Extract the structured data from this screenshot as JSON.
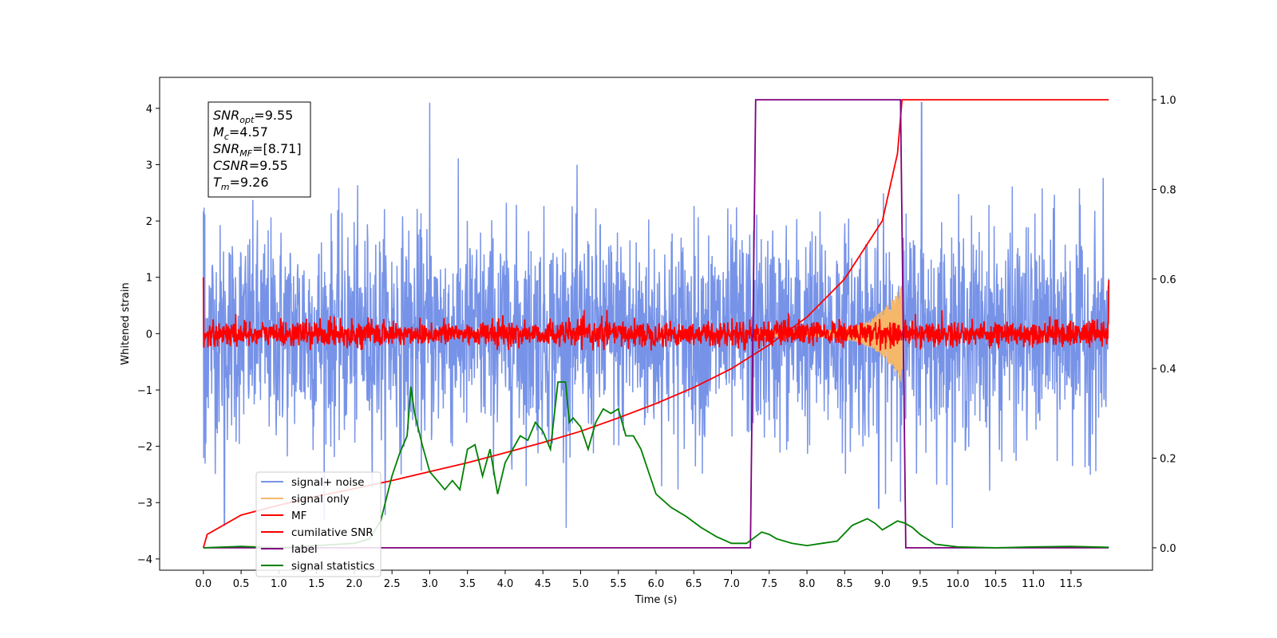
{
  "chart_data": {
    "type": "line",
    "xlabel": "Time (s)",
    "ylabel": "Whitened strain",
    "xlim": [
      -0.58,
      12.58
    ],
    "ylim": [
      -4.2,
      4.55
    ],
    "y2lim": [
      -0.05,
      1.05
    ],
    "x_ticks": [
      "0.0",
      "0.5",
      "1.0",
      "1.5",
      "2.0",
      "2.5",
      "3.0",
      "3.5",
      "4.0",
      "4.5",
      "5.0",
      "5.5",
      "6.0",
      "6.5",
      "7.0",
      "7.5",
      "8.0",
      "8.5",
      "9.0",
      "9.5",
      "10.0",
      "10.5",
      "11.0",
      "11.5"
    ],
    "y_ticks": [
      "4",
      "3",
      "2",
      "1",
      "0",
      "−1",
      "−2",
      "−3",
      "−4"
    ],
    "y2_ticks": [
      "1.0",
      "0.8",
      "0.6",
      "0.4",
      "0.2",
      "0.0"
    ],
    "grid": false,
    "legend_position": "lower-left",
    "annotation": {
      "lines": [
        {
          "base": "SNR",
          "sub": "opt",
          "value": "=9.55"
        },
        {
          "base": "M",
          "sub": "c",
          "value": "=4.57"
        },
        {
          "base": "SNR",
          "sub": "MF",
          "value": "=[8.71]"
        },
        {
          "base": "CSNR",
          "sub": "",
          "value": "=9.55"
        },
        {
          "base": "T",
          "sub": "m",
          "value": "=9.26"
        }
      ]
    },
    "series": [
      {
        "name": "signal+ noise",
        "color": "#7793e8",
        "axis": "left",
        "kind": "noise",
        "x_range": [
          0.0,
          12.0
        ],
        "mean": 0.0,
        "spread": 0.95,
        "peak_max": 4.1,
        "peak_min": -3.4
      },
      {
        "name": "signal only",
        "color": "#f5b86a",
        "axis": "left",
        "kind": "chirp",
        "x_range": [
          7.3,
          9.26
        ],
        "amplitude_max": 0.85
      },
      {
        "name": "MF",
        "color": "#ff0000",
        "axis": "left",
        "kind": "noise",
        "x_range": [
          0.0,
          12.0
        ],
        "mean": 0.0,
        "spread": 0.11,
        "edge_peak": 1.0
      },
      {
        "name": "cumilative SNR",
        "color": "#ff0000",
        "axis": "right",
        "x": [
          0.0,
          0.05,
          0.5,
          1.0,
          1.5,
          2.0,
          2.5,
          3.0,
          3.5,
          4.0,
          4.5,
          5.0,
          5.5,
          6.0,
          6.5,
          7.0,
          7.5,
          8.0,
          8.5,
          9.0,
          9.2,
          9.26,
          9.5,
          12.0
        ],
        "y": [
          0.0,
          0.03,
          0.073,
          0.095,
          0.115,
          0.132,
          0.15,
          0.17,
          0.19,
          0.212,
          0.235,
          0.26,
          0.29,
          0.322,
          0.358,
          0.4,
          0.453,
          0.515,
          0.6,
          0.73,
          0.88,
          1.0,
          1.0,
          1.0
        ]
      },
      {
        "name": "label",
        "color": "#800080",
        "axis": "right",
        "x": [
          0.0,
          7.25,
          7.32,
          9.24,
          9.31,
          12.0
        ],
        "y": [
          0.0,
          0.0,
          1.0,
          1.0,
          0.0,
          0.0
        ]
      },
      {
        "name": "signal statistics",
        "color": "#008000",
        "axis": "right",
        "x": [
          0.0,
          0.5,
          1.0,
          1.5,
          2.0,
          2.2,
          2.35,
          2.5,
          2.6,
          2.7,
          2.75,
          2.8,
          2.9,
          3.0,
          3.1,
          3.2,
          3.3,
          3.4,
          3.5,
          3.6,
          3.7,
          3.8,
          3.9,
          4.0,
          4.1,
          4.2,
          4.3,
          4.4,
          4.5,
          4.6,
          4.7,
          4.8,
          4.85,
          4.9,
          5.0,
          5.1,
          5.2,
          5.3,
          5.4,
          5.5,
          5.6,
          5.7,
          5.8,
          5.9,
          6.0,
          6.2,
          6.4,
          6.6,
          6.8,
          7.0,
          7.2,
          7.4,
          7.5,
          7.6,
          7.8,
          8.0,
          8.2,
          8.4,
          8.6,
          8.8,
          8.9,
          9.0,
          9.2,
          9.3,
          9.4,
          9.5,
          9.7,
          10.0,
          10.5,
          11.0,
          11.5,
          12.0
        ],
        "y": [
          0.0,
          0.003,
          0.0,
          0.005,
          0.01,
          0.02,
          0.06,
          0.16,
          0.21,
          0.25,
          0.36,
          0.3,
          0.23,
          0.17,
          0.15,
          0.13,
          0.15,
          0.13,
          0.22,
          0.23,
          0.16,
          0.22,
          0.12,
          0.19,
          0.22,
          0.25,
          0.24,
          0.28,
          0.26,
          0.22,
          0.37,
          0.37,
          0.28,
          0.29,
          0.27,
          0.22,
          0.28,
          0.31,
          0.3,
          0.31,
          0.25,
          0.25,
          0.22,
          0.17,
          0.12,
          0.09,
          0.07,
          0.045,
          0.025,
          0.01,
          0.01,
          0.035,
          0.03,
          0.02,
          0.01,
          0.005,
          0.01,
          0.015,
          0.05,
          0.065,
          0.055,
          0.04,
          0.06,
          0.055,
          0.045,
          0.03,
          0.008,
          0.002,
          0.0,
          0.002,
          0.003,
          0.001
        ]
      }
    ]
  }
}
